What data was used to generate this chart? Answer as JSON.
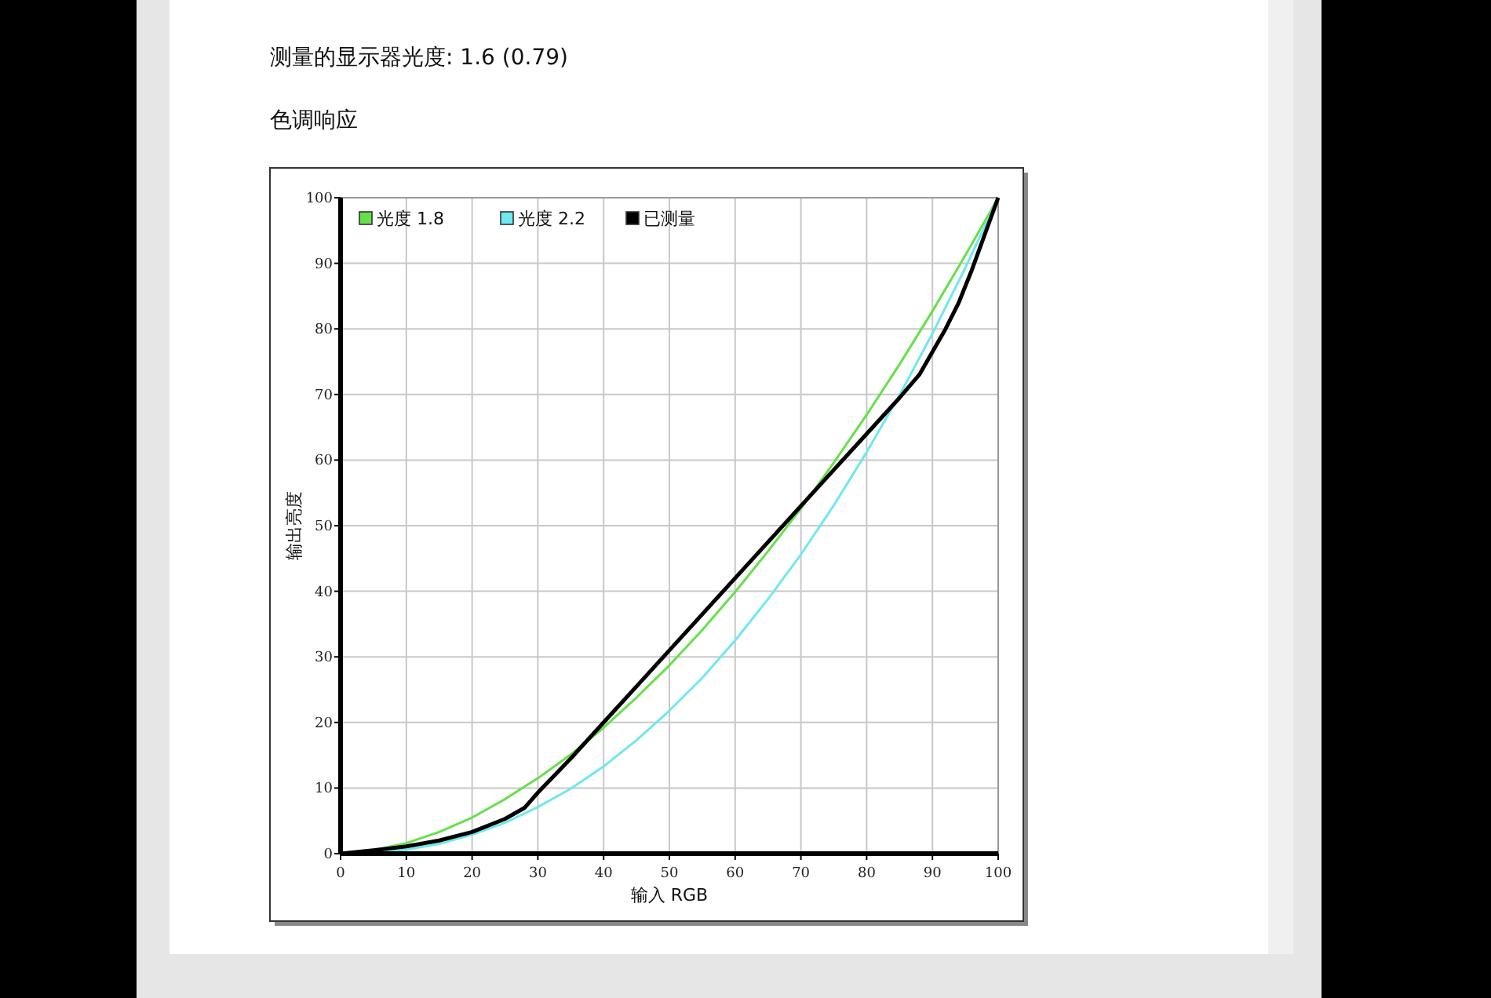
{
  "chart_data": {
    "type": "line",
    "title": "测量的显示器光度: 1.6 (0.79)",
    "subtitle": "色调响应",
    "xlabel": "输入 RGB",
    "ylabel": "输出亮度",
    "xlim": [
      0,
      100
    ],
    "ylim": [
      0,
      100
    ],
    "xticks": [
      0,
      10,
      20,
      30,
      40,
      50,
      60,
      70,
      80,
      90,
      100
    ],
    "yticks": [
      0,
      10,
      20,
      30,
      40,
      50,
      60,
      70,
      80,
      90,
      100
    ],
    "grid": true,
    "legend": "top left",
    "marker": "none",
    "line_style": "solid",
    "series": [
      {
        "name": "光度 1.8",
        "color": "#66e04a",
        "x": [
          0,
          5,
          10,
          15,
          20,
          25,
          30,
          35,
          40,
          45,
          50,
          55,
          60,
          65,
          70,
          75,
          80,
          85,
          90,
          95,
          100
        ],
        "values": [
          0,
          0.5,
          1.6,
          3.3,
          5.5,
          8.3,
          11.5,
          15.1,
          19.2,
          23.8,
          28.7,
          34.1,
          39.9,
          46.1,
          52.6,
          59.6,
          66.9,
          74.6,
          82.7,
          91.2,
          100
        ]
      },
      {
        "name": "光度 2.2",
        "color": "#6fe8ee",
        "x": [
          0,
          5,
          10,
          15,
          20,
          25,
          30,
          35,
          40,
          45,
          50,
          55,
          60,
          65,
          70,
          75,
          80,
          85,
          90,
          95,
          100
        ],
        "values": [
          0,
          0.1,
          0.6,
          1.5,
          2.9,
          4.7,
          7.1,
          9.9,
          13.3,
          17.3,
          21.8,
          26.8,
          32.5,
          38.8,
          45.6,
          53.1,
          61.2,
          69.9,
          79.3,
          89.3,
          100
        ]
      },
      {
        "name": "已测量",
        "color": "#000000",
        "x": [
          0,
          5,
          10,
          15,
          20,
          25,
          28,
          30,
          35,
          40,
          45,
          50,
          55,
          60,
          65,
          70,
          75,
          80,
          85,
          88,
          90,
          92,
          94,
          96,
          100
        ],
        "values": [
          0,
          0.5,
          1.1,
          2,
          3.3,
          5.3,
          7,
          9.3,
          14.5,
          20,
          25.5,
          31,
          36.5,
          42,
          47.5,
          53,
          58.5,
          64,
          69.5,
          73,
          76.5,
          80,
          84,
          89,
          100
        ]
      }
    ]
  }
}
